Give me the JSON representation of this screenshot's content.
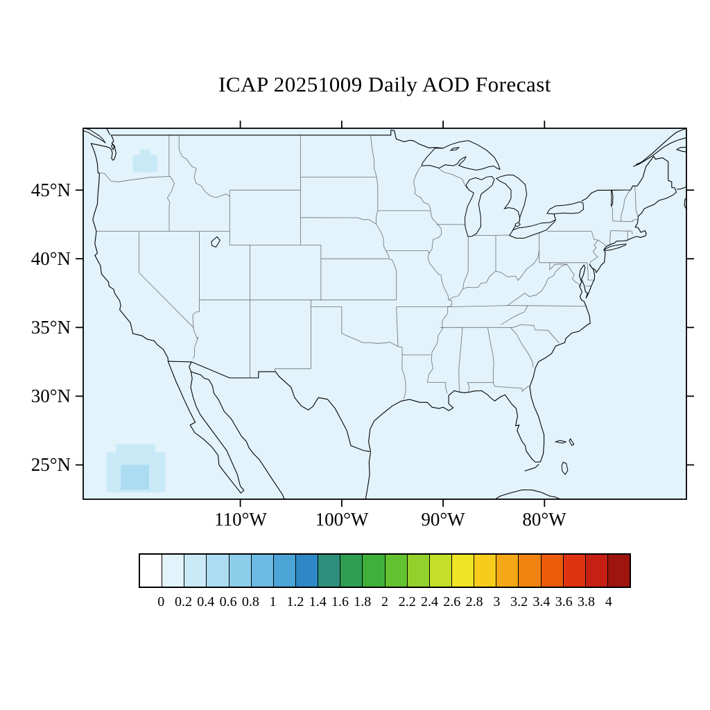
{
  "title": "ICAP 20251009 Daily AOD Forecast",
  "map": {
    "lat_tick_labels": [
      "45°N",
      "40°N",
      "35°N",
      "30°N",
      "25°N"
    ],
    "lon_tick_labels": [
      "110°W",
      "100°W",
      "90°W",
      "80°W"
    ]
  },
  "chart_data": {
    "type": "heatmap",
    "subtype": "geographic-filled-contour",
    "title": "ICAP 20251009 Daily AOD Forecast",
    "variable": "Aerosol Optical Depth (AOD)",
    "projection": "cylindrical-equidistant",
    "region": "Continental United States",
    "lon_range": [
      -125.5,
      -66.0
    ],
    "lat_range": [
      22.5,
      49.5
    ],
    "lat_ticks": [
      45,
      40,
      35,
      30,
      25
    ],
    "lon_ticks": [
      -110,
      -100,
      -90,
      -80
    ],
    "grid": false,
    "background_level": [
      0,
      0.2
    ],
    "aod_patches": [
      {
        "name": "offshore-baja-outer",
        "lon": [
          -123.2,
          -117.4
        ],
        "lat": [
          23.0,
          25.9
        ],
        "level": [
          0.2,
          0.4
        ]
      },
      {
        "name": "offshore-baja-step",
        "lon": [
          -122.3,
          -118.4
        ],
        "lat": [
          25.9,
          26.5
        ],
        "level": [
          0.2,
          0.4
        ]
      },
      {
        "name": "offshore-baja-inner",
        "lon": [
          -121.8,
          -119.0
        ],
        "lat": [
          23.2,
          25.0
        ],
        "level": [
          0.4,
          0.6
        ]
      },
      {
        "name": "washington-patch-a",
        "lon": [
          -120.6,
          -118.2
        ],
        "lat": [
          46.3,
          47.55
        ],
        "level": [
          0.2,
          0.4
        ]
      },
      {
        "name": "washington-patch-b",
        "lon": [
          -119.9,
          -118.9
        ],
        "lat": [
          47.55,
          47.95
        ],
        "level": [
          0.2,
          0.4
        ]
      }
    ],
    "colorbar": {
      "levels": [
        0,
        0.2,
        0.4,
        0.6,
        0.8,
        1,
        1.2,
        1.4,
        1.6,
        1.8,
        2,
        2.2,
        2.4,
        2.6,
        2.8,
        3,
        3.2,
        3.4,
        3.6,
        3.8,
        4
      ],
      "labels": [
        "0",
        "0.2",
        "0.4",
        "0.6",
        "0.8",
        "1",
        "1.2",
        "1.4",
        "1.6",
        "1.8",
        "2",
        "2.2",
        "2.4",
        "2.6",
        "2.8",
        "3",
        "3.2",
        "3.4",
        "3.6",
        "3.8",
        "4"
      ],
      "colors": [
        "#FFFFFF",
        "#E2F3FB",
        "#C9E9F7",
        "#ABDCF2",
        "#8DCEEB",
        "#6CBBE2",
        "#4BA3D6",
        "#2F88C5",
        "#2E8F7C",
        "#2F9E52",
        "#3FB13A",
        "#64C130",
        "#93D02B",
        "#C4DF28",
        "#EFE524",
        "#F7CC1D",
        "#F5A816",
        "#F1830F",
        "#EB5C0B",
        "#E0330F",
        "#C62015",
        "#9E1510"
      ]
    }
  }
}
